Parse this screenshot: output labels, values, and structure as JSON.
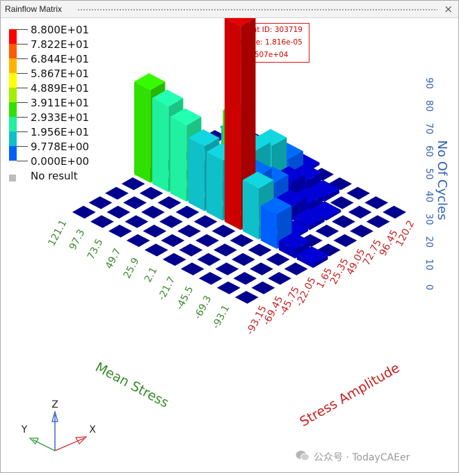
{
  "window": {
    "title": "Rainflow Matrix",
    "close_label": "×"
  },
  "legend": {
    "entries": [
      {
        "label": "8.800E+01",
        "color": "#ff0000"
      },
      {
        "label": "7.822E+01",
        "color": "#ff5a00"
      },
      {
        "label": "6.844E+01",
        "color": "#ffb400"
      },
      {
        "label": "5.867E+01",
        "color": "#ffff00"
      },
      {
        "label": "4.889E+01",
        "color": "#a0f000"
      },
      {
        "label": "3.911E+01",
        "color": "#30e000"
      },
      {
        "label": "2.933E+01",
        "color": "#20f0a0"
      },
      {
        "label": "1.956E+01",
        "color": "#10c0c8"
      },
      {
        "label": "9.778E+00",
        "color": "#0060ff"
      },
      {
        "label": "0.000E+00",
        "color": "#0000c0"
      }
    ],
    "no_result_label": "No result",
    "no_result_color": "#bdbdbd"
  },
  "info_box": {
    "element_id": "Element ID: 303719",
    "damage": "Damage: 1.816e-05",
    "life": "Life: 5.507e+04"
  },
  "watermark": {
    "text": "公众号 · TodayCAEer"
  },
  "triad": {
    "x": "X",
    "y": "Y",
    "z": "Z"
  },
  "chart_data": {
    "type": "bar3d",
    "title": "Rainflow Matrix",
    "zlabel": "No Of Cycles",
    "zticks": [
      "0",
      "10",
      "20",
      "30",
      "40",
      "50",
      "60",
      "70",
      "80",
      "90"
    ],
    "zlim": [
      0,
      90
    ],
    "mean_stress": {
      "label": "Mean Stress",
      "ticks": [
        "121.1",
        "97.3",
        "73.5",
        "49.7",
        "25.9",
        "2.1",
        "-21.7",
        "-45.5",
        "-69.3",
        "-93.1"
      ]
    },
    "stress_amplitude": {
      "label": "Stress Amplitude",
      "ticks": [
        "-93.15",
        "-69.45",
        "-45.75",
        "-22.05",
        "1.65",
        "25.35",
        "49.05",
        "72.75",
        "96.45",
        "120.2"
      ]
    },
    "bars": [
      {
        "mean_stress": "121.1",
        "stress_amplitude": "-93.15",
        "cycles": 0
      },
      {
        "mean_stress": "97.3",
        "stress_amplitude": "-93.15",
        "cycles": 0
      },
      {
        "mean_stress": "73.5",
        "stress_amplitude": "-93.15",
        "cycles": 0
      },
      {
        "mean_stress": "49.7",
        "stress_amplitude": "-93.15",
        "cycles": 0
      },
      {
        "mean_stress": "25.9",
        "stress_amplitude": "-93.15",
        "cycles": 0
      },
      {
        "mean_stress": "2.1",
        "stress_amplitude": "-93.15",
        "cycles": 0
      },
      {
        "mean_stress": "-21.7",
        "stress_amplitude": "-93.15",
        "cycles": 0
      },
      {
        "mean_stress": "-45.5",
        "stress_amplitude": "-93.15",
        "cycles": 0
      },
      {
        "mean_stress": "-69.3",
        "stress_amplitude": "-93.15",
        "cycles": 0
      },
      {
        "mean_stress": "-93.1",
        "stress_amplitude": "-93.15",
        "cycles": 0
      },
      {
        "mean_stress": "121.1",
        "stress_amplitude": "-69.45",
        "cycles": 0
      },
      {
        "mean_stress": "97.3",
        "stress_amplitude": "-69.45",
        "cycles": 0
      },
      {
        "mean_stress": "73.5",
        "stress_amplitude": "-69.45",
        "cycles": 0
      },
      {
        "mean_stress": "49.7",
        "stress_amplitude": "-69.45",
        "cycles": 0
      },
      {
        "mean_stress": "25.9",
        "stress_amplitude": "-69.45",
        "cycles": 0
      },
      {
        "mean_stress": "2.1",
        "stress_amplitude": "-69.45",
        "cycles": 0
      },
      {
        "mean_stress": "-21.7",
        "stress_amplitude": "-69.45",
        "cycles": 0
      },
      {
        "mean_stress": "-45.5",
        "stress_amplitude": "-69.45",
        "cycles": 0
      },
      {
        "mean_stress": "-69.3",
        "stress_amplitude": "-69.45",
        "cycles": 0
      },
      {
        "mean_stress": "-93.1",
        "stress_amplitude": "-69.45",
        "cycles": 0
      },
      {
        "mean_stress": "121.1",
        "stress_amplitude": "-45.75",
        "cycles": 0
      },
      {
        "mean_stress": "97.3",
        "stress_amplitude": "-45.75",
        "cycles": 0
      },
      {
        "mean_stress": "73.5",
        "stress_amplitude": "-45.75",
        "cycles": 0
      },
      {
        "mean_stress": "49.7",
        "stress_amplitude": "-45.75",
        "cycles": 0
      },
      {
        "mean_stress": "25.9",
        "stress_amplitude": "-45.75",
        "cycles": 0
      },
      {
        "mean_stress": "2.1",
        "stress_amplitude": "-45.75",
        "cycles": 0
      },
      {
        "mean_stress": "-21.7",
        "stress_amplitude": "-45.75",
        "cycles": 0
      },
      {
        "mean_stress": "-45.5",
        "stress_amplitude": "-45.75",
        "cycles": 0
      },
      {
        "mean_stress": "-69.3",
        "stress_amplitude": "-45.75",
        "cycles": 0
      },
      {
        "mean_stress": "-93.1",
        "stress_amplitude": "-45.75",
        "cycles": 0
      },
      {
        "mean_stress": "121.1",
        "stress_amplitude": "-22.05",
        "cycles": 0
      },
      {
        "mean_stress": "97.3",
        "stress_amplitude": "-22.05",
        "cycles": 0
      },
      {
        "mean_stress": "73.5",
        "stress_amplitude": "-22.05",
        "cycles": 0
      },
      {
        "mean_stress": "49.7",
        "stress_amplitude": "-22.05",
        "cycles": 0
      },
      {
        "mean_stress": "25.9",
        "stress_amplitude": "-22.05",
        "cycles": 0
      },
      {
        "mean_stress": "2.1",
        "stress_amplitude": "-22.05",
        "cycles": 0
      },
      {
        "mean_stress": "-21.7",
        "stress_amplitude": "-22.05",
        "cycles": 0
      },
      {
        "mean_stress": "-45.5",
        "stress_amplitude": "-22.05",
        "cycles": 0
      },
      {
        "mean_stress": "-69.3",
        "stress_amplitude": "-22.05",
        "cycles": 0
      },
      {
        "mean_stress": "-93.1",
        "stress_amplitude": "-22.05",
        "cycles": 0
      },
      {
        "mean_stress": "121.1",
        "stress_amplitude": "1.65",
        "cycles": 40
      },
      {
        "mean_stress": "97.3",
        "stress_amplitude": "1.65",
        "cycles": 37
      },
      {
        "mean_stress": "73.5",
        "stress_amplitude": "1.65",
        "cycles": 33
      },
      {
        "mean_stress": "49.7",
        "stress_amplitude": "1.65",
        "cycles": 28
      },
      {
        "mean_stress": "25.9",
        "stress_amplitude": "1.65",
        "cycles": 26
      },
      {
        "mean_stress": "2.1",
        "stress_amplitude": "1.65",
        "cycles": 88
      },
      {
        "mean_stress": "-21.7",
        "stress_amplitude": "1.65",
        "cycles": 22
      },
      {
        "mean_stress": "-45.5",
        "stress_amplitude": "1.65",
        "cycles": 15
      },
      {
        "mean_stress": "-69.3",
        "stress_amplitude": "1.65",
        "cycles": 4
      },
      {
        "mean_stress": "-93.1",
        "stress_amplitude": "1.65",
        "cycles": 2
      },
      {
        "mean_stress": "121.1",
        "stress_amplitude": "25.35",
        "cycles": 0
      },
      {
        "mean_stress": "97.3",
        "stress_amplitude": "25.35",
        "cycles": 0
      },
      {
        "mean_stress": "73.5",
        "stress_amplitude": "25.35",
        "cycles": 1
      },
      {
        "mean_stress": "49.7",
        "stress_amplitude": "25.35",
        "cycles": 2
      },
      {
        "mean_stress": "25.9",
        "stress_amplitude": "25.35",
        "cycles": 40
      },
      {
        "mean_stress": "2.1",
        "stress_amplitude": "25.35",
        "cycles": 19
      },
      {
        "mean_stress": "-21.7",
        "stress_amplitude": "25.35",
        "cycles": 3
      },
      {
        "mean_stress": "-45.5",
        "stress_amplitude": "25.35",
        "cycles": 1
      },
      {
        "mean_stress": "-69.3",
        "stress_amplitude": "25.35",
        "cycles": 0
      },
      {
        "mean_stress": "-93.1",
        "stress_amplitude": "25.35",
        "cycles": 0
      },
      {
        "mean_stress": "121.1",
        "stress_amplitude": "49.05",
        "cycles": 0
      },
      {
        "mean_stress": "97.3",
        "stress_amplitude": "49.05",
        "cycles": 0
      },
      {
        "mean_stress": "73.5",
        "stress_amplitude": "49.05",
        "cycles": 2
      },
      {
        "mean_stress": "49.7",
        "stress_amplitude": "49.05",
        "cycles": 25
      },
      {
        "mean_stress": "25.9",
        "stress_amplitude": "49.05",
        "cycles": 22
      },
      {
        "mean_stress": "2.1",
        "stress_amplitude": "49.05",
        "cycles": 12
      },
      {
        "mean_stress": "-21.7",
        "stress_amplitude": "49.05",
        "cycles": 6
      },
      {
        "mean_stress": "-45.5",
        "stress_amplitude": "49.05",
        "cycles": 2
      },
      {
        "mean_stress": "-69.3",
        "stress_amplitude": "49.05",
        "cycles": 0
      },
      {
        "mean_stress": "-93.1",
        "stress_amplitude": "49.05",
        "cycles": 0
      },
      {
        "mean_stress": "121.1",
        "stress_amplitude": "72.75",
        "cycles": 0
      },
      {
        "mean_stress": "97.3",
        "stress_amplitude": "72.75",
        "cycles": 0
      },
      {
        "mean_stress": "73.5",
        "stress_amplitude": "72.75",
        "cycles": 1
      },
      {
        "mean_stress": "49.7",
        "stress_amplitude": "72.75",
        "cycles": 10
      },
      {
        "mean_stress": "25.9",
        "stress_amplitude": "72.75",
        "cycles": 20
      },
      {
        "mean_stress": "2.1",
        "stress_amplitude": "72.75",
        "cycles": 8
      },
      {
        "mean_stress": "-21.7",
        "stress_amplitude": "72.75",
        "cycles": 3
      },
      {
        "mean_stress": "-45.5",
        "stress_amplitude": "72.75",
        "cycles": 1
      },
      {
        "mean_stress": "-69.3",
        "stress_amplitude": "72.75",
        "cycles": 0
      },
      {
        "mean_stress": "-93.1",
        "stress_amplitude": "72.75",
        "cycles": 0
      },
      {
        "mean_stress": "121.1",
        "stress_amplitude": "96.45",
        "cycles": 0
      },
      {
        "mean_stress": "97.3",
        "stress_amplitude": "96.45",
        "cycles": 0
      },
      {
        "mean_stress": "73.5",
        "stress_amplitude": "96.45",
        "cycles": 0
      },
      {
        "mean_stress": "49.7",
        "stress_amplitude": "96.45",
        "cycles": 4
      },
      {
        "mean_stress": "25.9",
        "stress_amplitude": "96.45",
        "cycles": 10
      },
      {
        "mean_stress": "2.1",
        "stress_amplitude": "96.45",
        "cycles": 5
      },
      {
        "mean_stress": "-21.7",
        "stress_amplitude": "96.45",
        "cycles": 2
      },
      {
        "mean_stress": "-45.5",
        "stress_amplitude": "96.45",
        "cycles": 0
      },
      {
        "mean_stress": "-69.3",
        "stress_amplitude": "96.45",
        "cycles": 0
      },
      {
        "mean_stress": "-93.1",
        "stress_amplitude": "96.45",
        "cycles": 0
      },
      {
        "mean_stress": "121.1",
        "stress_amplitude": "120.2",
        "cycles": 0
      },
      {
        "mean_stress": "97.3",
        "stress_amplitude": "120.2",
        "cycles": 0
      },
      {
        "mean_stress": "73.5",
        "stress_amplitude": "120.2",
        "cycles": 0
      },
      {
        "mean_stress": "49.7",
        "stress_amplitude": "120.2",
        "cycles": 2
      },
      {
        "mean_stress": "25.9",
        "stress_amplitude": "120.2",
        "cycles": 1
      },
      {
        "mean_stress": "2.1",
        "stress_amplitude": "120.2",
        "cycles": 0
      },
      {
        "mean_stress": "-21.7",
        "stress_amplitude": "120.2",
        "cycles": 0
      },
      {
        "mean_stress": "-45.5",
        "stress_amplitude": "120.2",
        "cycles": 0
      },
      {
        "mean_stress": "-69.3",
        "stress_amplitude": "120.2",
        "cycles": 0
      },
      {
        "mean_stress": "-93.1",
        "stress_amplitude": "120.2",
        "cycles": 0
      }
    ],
    "colors": {
      "mean_axis": "#3a8a2a",
      "amp_axis": "#c82020",
      "z_axis": "#2f5fb8",
      "floor": "#00008e",
      "selected_bar": "#cc0000"
    }
  }
}
